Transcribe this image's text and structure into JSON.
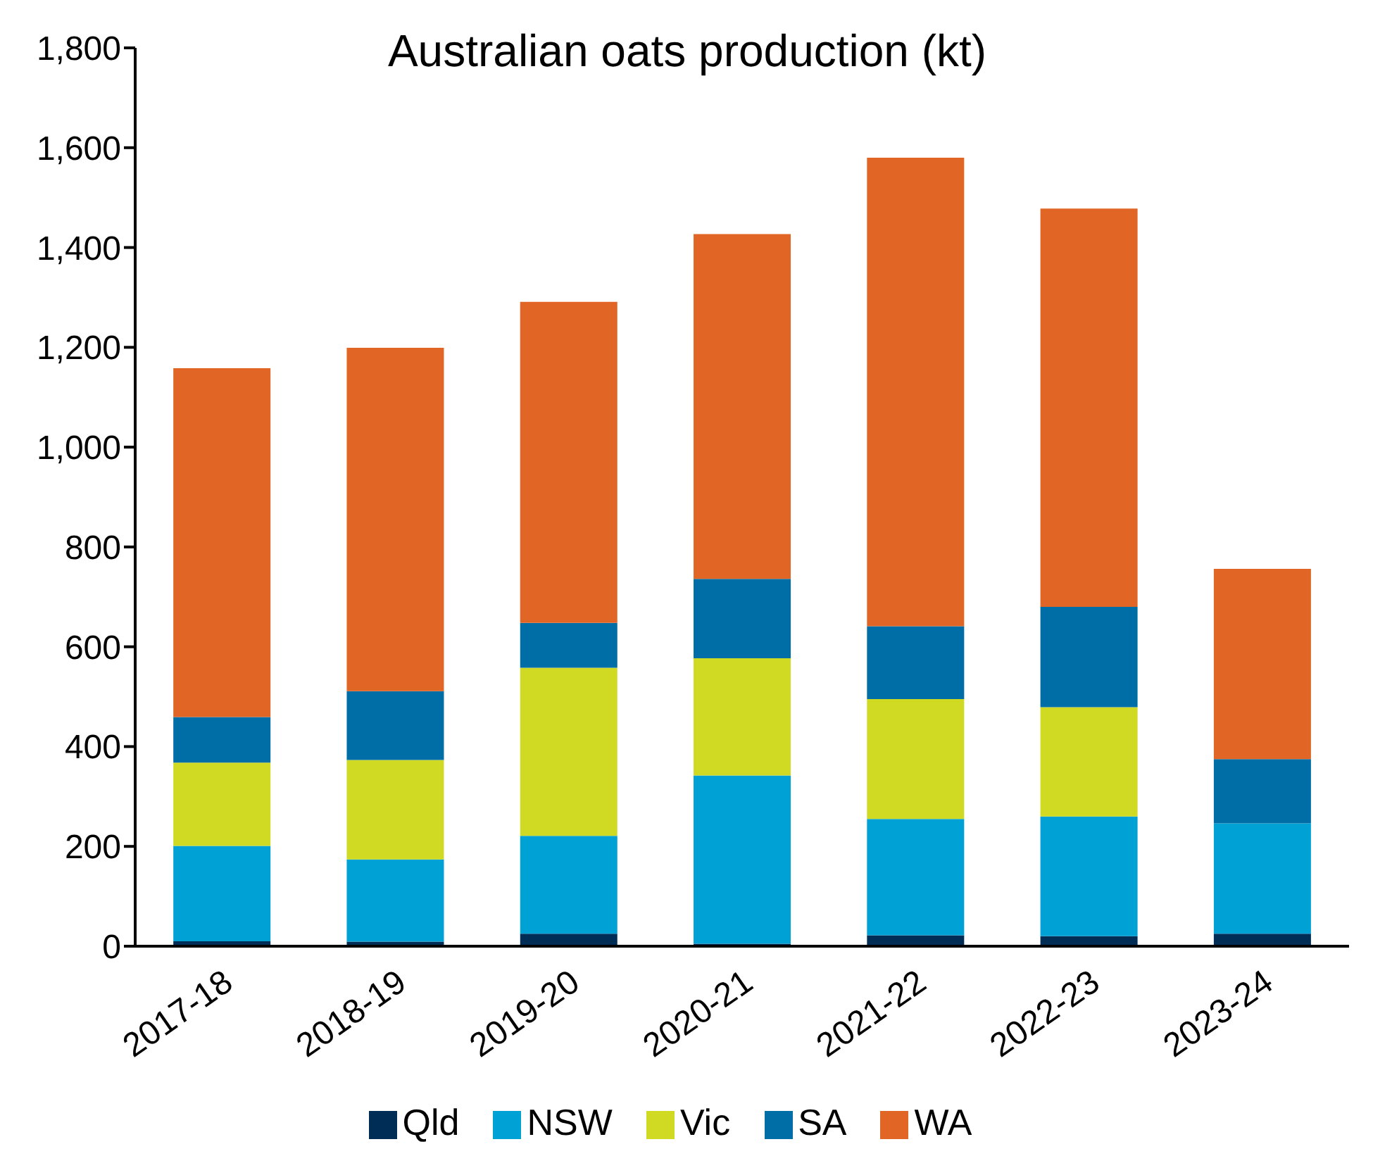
{
  "chart_data": {
    "type": "bar",
    "title": "Australian oats production (kt)",
    "stacked": true,
    "categories": [
      "2017-18",
      "2018-19",
      "2019-20",
      "2020-21",
      "2021-22",
      "2022-23",
      "2023-24"
    ],
    "series": [
      {
        "name": "Qld",
        "color": "#002d56",
        "values": [
          10,
          9,
          25,
          5,
          22,
          20,
          25
        ]
      },
      {
        "name": "NSW",
        "color": "#00a1d5",
        "values": [
          191,
          165,
          196,
          337,
          233,
          240,
          221
        ]
      },
      {
        "name": "Vic",
        "color": "#d1da22",
        "values": [
          167,
          199,
          337,
          235,
          240,
          219,
          0
        ]
      },
      {
        "name": "SA",
        "color": "#006ea6",
        "values": [
          91,
          138,
          90,
          159,
          146,
          201,
          129
        ]
      },
      {
        "name": "WA",
        "color": "#e16524",
        "values": [
          699,
          688,
          643,
          691,
          939,
          798,
          381
        ]
      }
    ],
    "ylim": [
      0,
      1800
    ],
    "yticks": [
      {
        "value": 0,
        "label": "0"
      },
      {
        "value": 200,
        "label": "200"
      },
      {
        "value": 400,
        "label": "400"
      },
      {
        "value": 600,
        "label": "600"
      },
      {
        "value": 800,
        "label": "800"
      },
      {
        "value": 1000,
        "label": "1,000"
      },
      {
        "value": 1200,
        "label": "1,200"
      },
      {
        "value": 1400,
        "label": "1,400"
      },
      {
        "value": 1600,
        "label": "1,600"
      },
      {
        "value": 1800,
        "label": "1,800"
      }
    ],
    "grid": false,
    "legend": "bottom"
  }
}
